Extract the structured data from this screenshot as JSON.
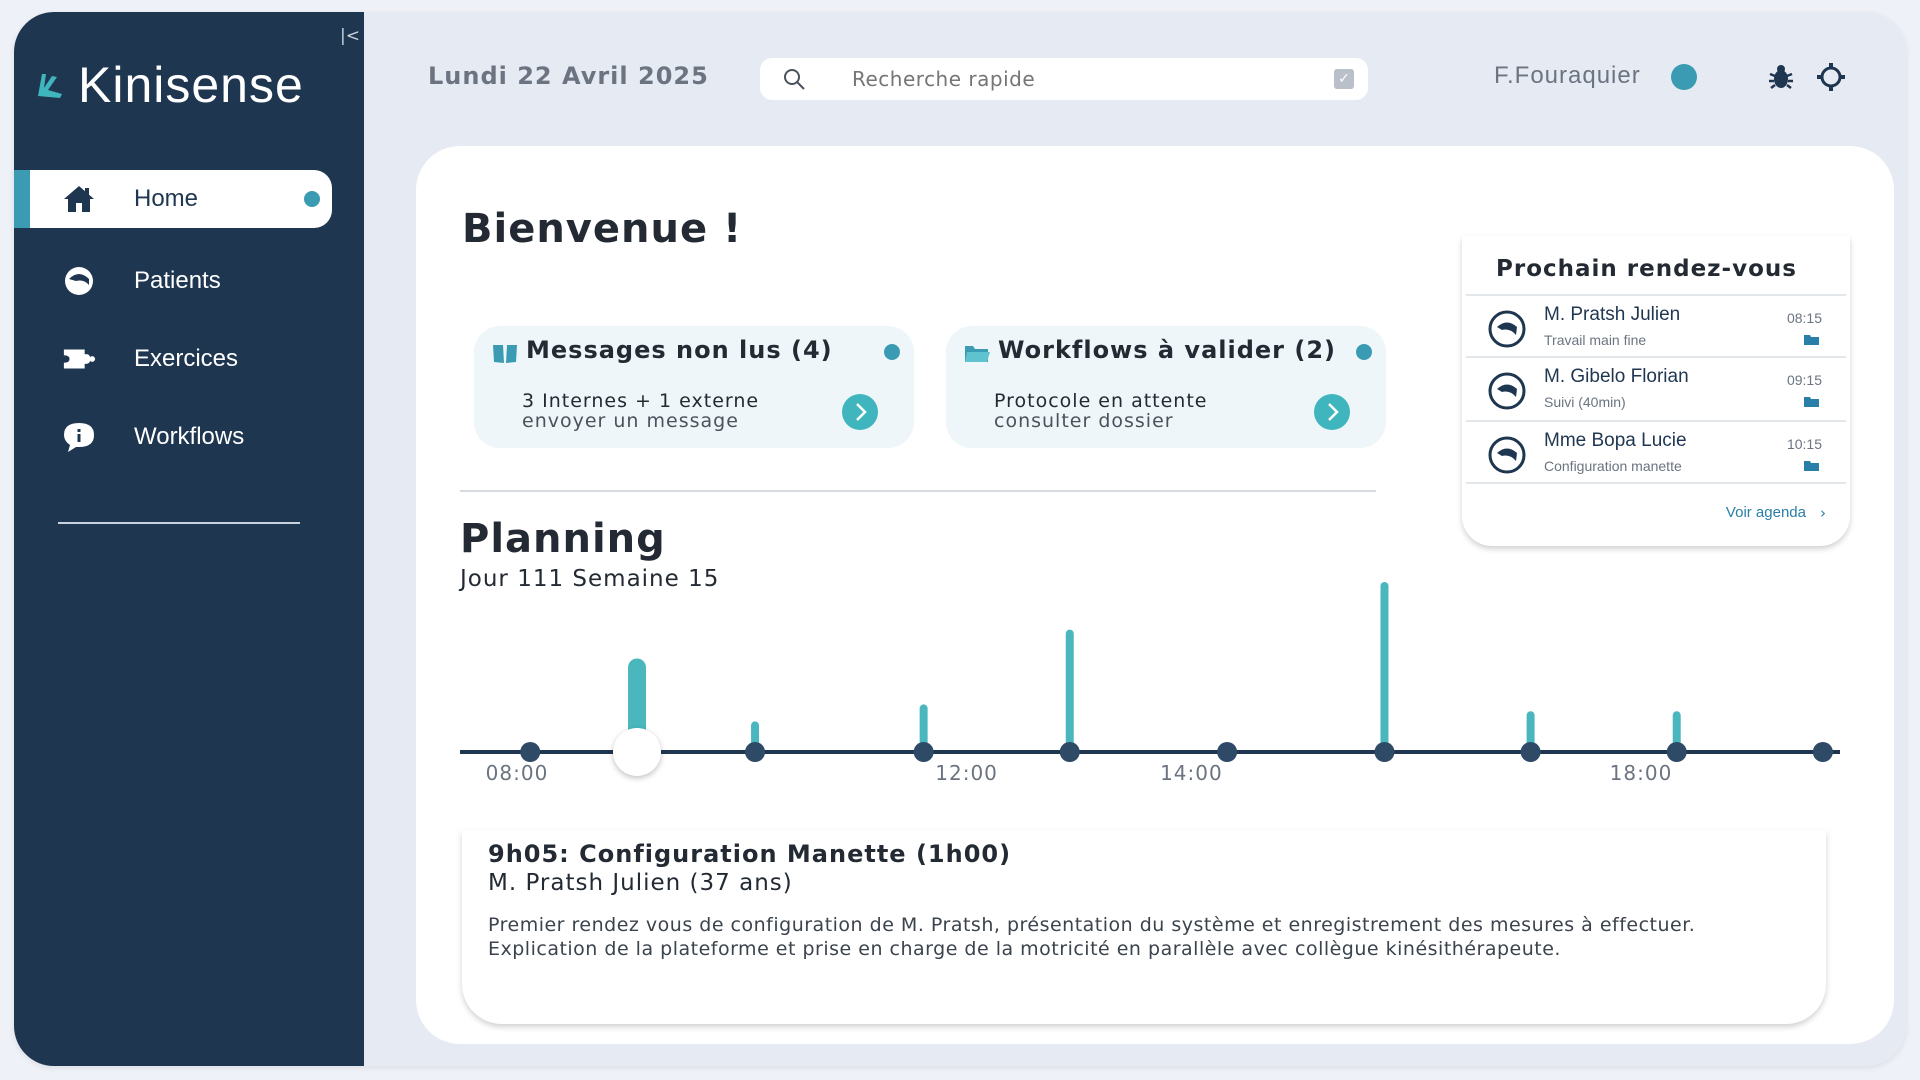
{
  "colors": {
    "sidebar_bg": "#1f3650",
    "accent": "#3b9bb3",
    "teal_bar": "#4ab7bf",
    "page_bg": "#e6eaf3"
  },
  "sidebar": {
    "collapse_symbol": "|<",
    "app_name": "Kinisense",
    "items": [
      {
        "label": "Home",
        "icon": "home-icon",
        "active": true
      },
      {
        "label": "Patients",
        "icon": "patient-head-icon",
        "active": false
      },
      {
        "label": "Exercices",
        "icon": "puzzle-icon",
        "active": false
      },
      {
        "label": "Workflows",
        "icon": "chat-bubble-icon",
        "active": false
      }
    ]
  },
  "header": {
    "date": "Lundi 22 Avril 2025",
    "search_placeholder": "Recherche rapide",
    "user_name": "F.Fouraquier"
  },
  "main": {
    "welcome": "Bienvenue !",
    "cards": [
      {
        "title": "Messages non lus (4)",
        "line1": "3 Internes + 1 externe",
        "line2": "envoyer un message",
        "icon": "book-icon"
      },
      {
        "title": "Workflows à valider (2)",
        "line1": "Protocole en attente",
        "line2": "consulter dossier",
        "icon": "folder-icon"
      }
    ],
    "planning_title": "Planning",
    "planning_subtitle": "Jour 111 Semaine 15",
    "timeline": {
      "labels": [
        "08:00",
        "12:00",
        "14:00",
        "18:00"
      ],
      "label_hours": [
        8,
        12,
        14,
        18
      ],
      "events": [
        {
          "hour": 9.05,
          "level": 0.55,
          "selected": true
        },
        {
          "hour": 10.1,
          "level": 0.18,
          "selected": false
        },
        {
          "hour": 11.6,
          "level": 0.28,
          "selected": false
        },
        {
          "hour": 12.9,
          "level": 0.72,
          "selected": false
        },
        {
          "hour": 14.3,
          "level": 0,
          "selected": false
        },
        {
          "hour": 15.7,
          "level": 1.0,
          "selected": false
        },
        {
          "hour": 17.0,
          "level": 0.24,
          "selected": false
        },
        {
          "hour": 18.3,
          "level": 0.24,
          "selected": false
        },
        {
          "hour": 19.6,
          "level": 0,
          "selected": false
        },
        {
          "hour": 8.1,
          "level": 0,
          "selected": false
        }
      ]
    },
    "detail": {
      "title": "9h05: Configuration Manette (1h00)",
      "patient": "M. Pratsh Julien (37 ans)",
      "desc_line1": "Premier rendez vous de configuration de M. Pratsh, présentation du système et enregistrement des mesures à effectuer.",
      "desc_line2": "Explication de la plateforme et prise en charge de la motricité en parallèle avec collègue kinésithérapeute."
    }
  },
  "appointments": {
    "title": "Prochain rendez-vous",
    "items": [
      {
        "name": "M. Pratsh Julien",
        "desc": "Travail main fine",
        "time": "08:15"
      },
      {
        "name": "M. Gibelo Florian",
        "desc": "Suivi (40min)",
        "time": "09:15"
      },
      {
        "name": "Mme Bopa Lucie",
        "desc": "Configuration manette",
        "time": "10:15"
      }
    ],
    "footer_link": "Voir agenda"
  }
}
